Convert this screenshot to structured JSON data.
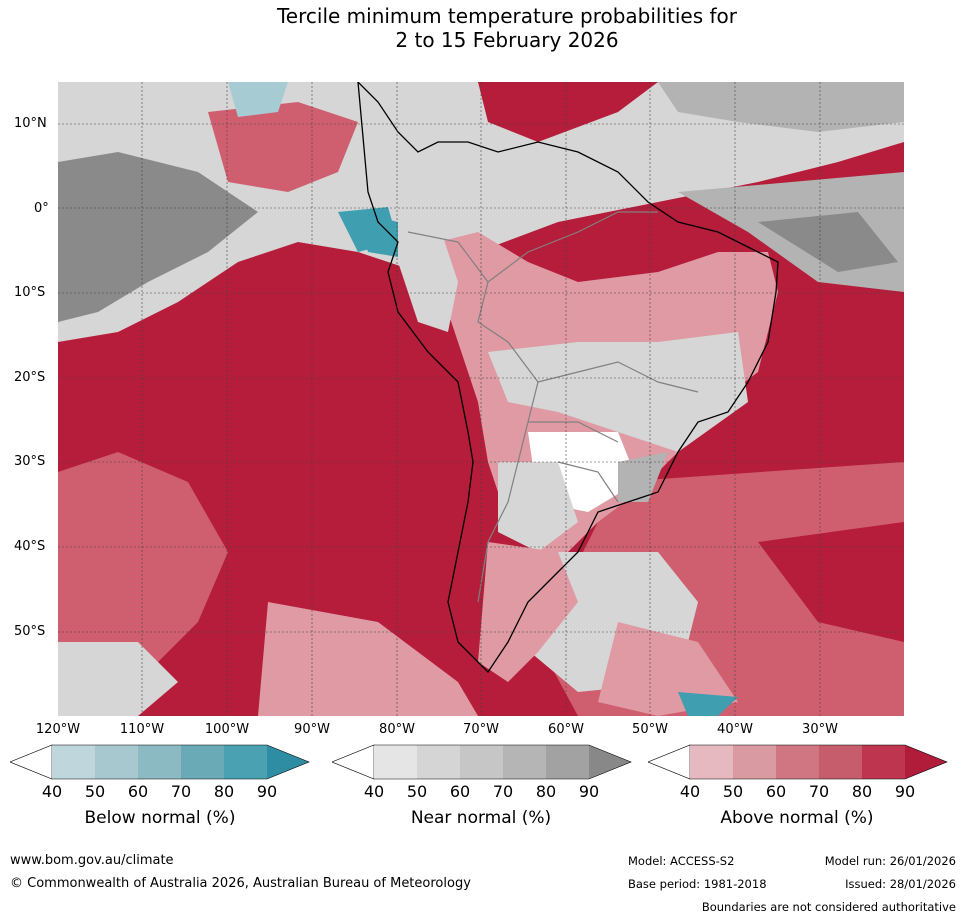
{
  "title_line1": "Tercile minimum temperature probabilities for",
  "title_line2": "2 to 15 February 2026",
  "map": {
    "lat_labels": [
      "10°N",
      "0°",
      "10°S",
      "20°S",
      "30°S",
      "40°S",
      "50°S"
    ],
    "lon_labels": [
      "120°W",
      "110°W",
      "100°W",
      "90°W",
      "80°W",
      "70°W",
      "60°W",
      "50°W",
      "40°W",
      "30°W"
    ],
    "colors": {
      "above_90": "#b51d3a",
      "above_70": "#cf5f6f",
      "above_50": "#df9aa3",
      "near_grey_dark": "#8a8a8a",
      "near_grey_mid": "#b3b3b3",
      "near_grey_light": "#d6d6d6",
      "below_teal": "#3f9fb0",
      "below_light": "#a6cbd3",
      "coast": "#000000",
      "border": "#808080"
    }
  },
  "colorbars": [
    {
      "title": "Below normal (%)",
      "ticks": [
        "40",
        "50",
        "60",
        "70",
        "80",
        "90"
      ],
      "colors": [
        "#bed6dc",
        "#a7c8cf",
        "#8bbac3",
        "#6aaab6",
        "#49a1b1",
        "#2e8da3"
      ]
    },
    {
      "title": "Near normal (%)",
      "ticks": [
        "40",
        "50",
        "60",
        "70",
        "80",
        "90"
      ],
      "colors": [
        "#e5e5e5",
        "#d5d5d5",
        "#c6c6c6",
        "#b5b5b5",
        "#a2a2a2",
        "#888888"
      ]
    },
    {
      "title": "Above normal (%)",
      "ticks": [
        "40",
        "50",
        "60",
        "70",
        "80",
        "90"
      ],
      "colors": [
        "#e5b9bf",
        "#d99aa2",
        "#cf7682",
        "#c65d6c",
        "#be3550",
        "#b01c3a"
      ]
    }
  ],
  "footer": {
    "website": "www.bom.gov.au/climate",
    "copyright": "© Commonwealth of Australia 2026, Australian Bureau of Meteorology",
    "model": "Model: ACCESS-S2",
    "model_run": "Model run: 26/01/2026",
    "base_period": "Base period: 1981-2018",
    "issued": "Issued: 28/01/2026",
    "disclaimer": "Boundaries are not considered authoritative"
  }
}
